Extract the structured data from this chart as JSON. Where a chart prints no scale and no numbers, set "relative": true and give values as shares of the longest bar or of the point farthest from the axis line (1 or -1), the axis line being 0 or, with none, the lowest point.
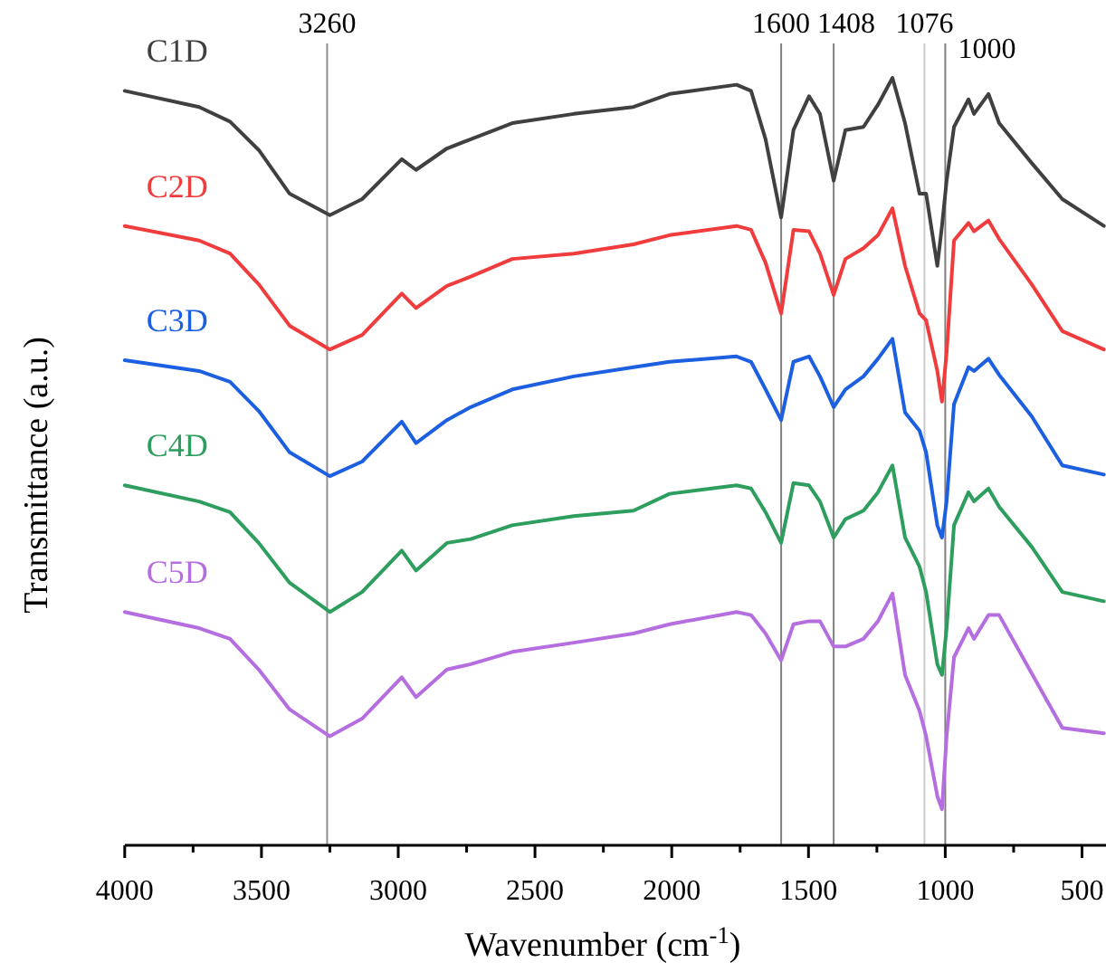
{
  "chart_data": {
    "type": "line",
    "relative": true,
    "xlabel": "Wavenumber (cm$^{-1}$)",
    "ylabel": "Transmittance (a.u.)",
    "xlim": [
      4000,
      400
    ],
    "xticks": [
      4000,
      {
        "value": 3750,
        "label": null
      },
      3500,
      {
        "value": 3250,
        "label": null
      },
      3000,
      {
        "value": 2750,
        "label": null
      },
      2500,
      {
        "value": 2250,
        "label": null
      },
      2000,
      {
        "value": 1750,
        "label": null
      },
      1500,
      {
        "value": 1250,
        "label": null
      },
      1000,
      {
        "value": 750,
        "label": null
      },
      500
    ],
    "x": [
      4000,
      3728,
      3615,
      3510,
      3397,
      3250,
      3132,
      2987,
      2935,
      2822,
      2735,
      2583,
      2358,
      2140,
      2008,
      1763,
      1710,
      1657,
      1600,
      1555,
      1498,
      1458,
      1408,
      1365,
      1299,
      1246,
      1193,
      1147,
      1094,
      1070,
      1029,
      1012,
      995,
      968,
      915,
      895,
      842,
      803,
      684,
      572,
      420
    ],
    "series": [
      {
        "name": "C1D",
        "color": "#404040",
        "values": [
          0.983,
          0.962,
          0.943,
          0.906,
          0.849,
          0.821,
          0.842,
          0.894,
          0.88,
          0.908,
          0.92,
          0.941,
          0.953,
          0.962,
          0.979,
          0.991,
          0.983,
          0.92,
          0.818,
          0.932,
          0.976,
          0.953,
          0.866,
          0.932,
          0.936,
          0.965,
          1.0,
          0.941,
          0.849,
          0.849,
          0.755,
          0.807,
          0.866,
          0.936,
          0.972,
          0.953,
          0.979,
          0.941,
          0.889,
          0.842,
          0.807
        ]
      },
      {
        "name": "C2D",
        "color": "#f03c3c",
        "values": [
          0.807,
          0.788,
          0.771,
          0.731,
          0.677,
          0.646,
          0.665,
          0.719,
          0.7,
          0.729,
          0.741,
          0.764,
          0.771,
          0.783,
          0.795,
          0.807,
          0.802,
          0.759,
          0.693,
          0.802,
          0.8,
          0.771,
          0.717,
          0.764,
          0.778,
          0.795,
          0.83,
          0.755,
          0.693,
          0.684,
          0.618,
          0.578,
          0.642,
          0.788,
          0.811,
          0.8,
          0.814,
          0.79,
          0.731,
          0.67,
          0.646
        ]
      },
      {
        "name": "C3D",
        "color": "#1c5fe0",
        "values": [
          0.632,
          0.618,
          0.604,
          0.566,
          0.512,
          0.481,
          0.5,
          0.552,
          0.524,
          0.554,
          0.571,
          0.594,
          0.611,
          0.623,
          0.63,
          0.637,
          0.63,
          0.594,
          0.554,
          0.63,
          0.637,
          0.611,
          0.571,
          0.594,
          0.611,
          0.634,
          0.66,
          0.564,
          0.54,
          0.512,
          0.417,
          0.401,
          0.448,
          0.575,
          0.623,
          0.618,
          0.634,
          0.613,
          0.559,
          0.495,
          0.483
        ]
      },
      {
        "name": "C4D",
        "color": "#2e9e5e",
        "values": [
          0.469,
          0.448,
          0.434,
          0.394,
          0.342,
          0.304,
          0.33,
          0.384,
          0.358,
          0.394,
          0.399,
          0.417,
          0.429,
          0.436,
          0.458,
          0.469,
          0.465,
          0.434,
          0.394,
          0.472,
          0.469,
          0.448,
          0.401,
          0.425,
          0.436,
          0.46,
          0.495,
          0.401,
          0.363,
          0.33,
          0.236,
          0.222,
          0.283,
          0.417,
          0.46,
          0.448,
          0.465,
          0.441,
          0.389,
          0.33,
          0.318
        ]
      },
      {
        "name": "C5D",
        "color": "#b56ee0",
        "values": [
          0.304,
          0.283,
          0.269,
          0.229,
          0.177,
          0.142,
          0.165,
          0.219,
          0.193,
          0.229,
          0.236,
          0.252,
          0.264,
          0.276,
          0.288,
          0.304,
          0.3,
          0.276,
          0.241,
          0.288,
          0.292,
          0.292,
          0.259,
          0.259,
          0.269,
          0.292,
          0.328,
          0.222,
          0.175,
          0.142,
          0.064,
          0.047,
          0.142,
          0.245,
          0.283,
          0.269,
          0.3,
          0.3,
          0.224,
          0.153,
          0.146
        ]
      }
    ],
    "ref_lines": [
      {
        "axis": "x",
        "value": 3260,
        "label": "3260",
        "color": "#909090"
      },
      {
        "axis": "x",
        "value": 1600,
        "label": "1600",
        "color": "#808080"
      },
      {
        "axis": "x",
        "value": 1408,
        "label": "1408",
        "color": "#808080"
      },
      {
        "axis": "x",
        "value": 1076,
        "label": "1076",
        "color": "#c8c8c8"
      },
      {
        "axis": "x",
        "value": 1000,
        "label": "1000",
        "color": "#808080"
      }
    ]
  }
}
